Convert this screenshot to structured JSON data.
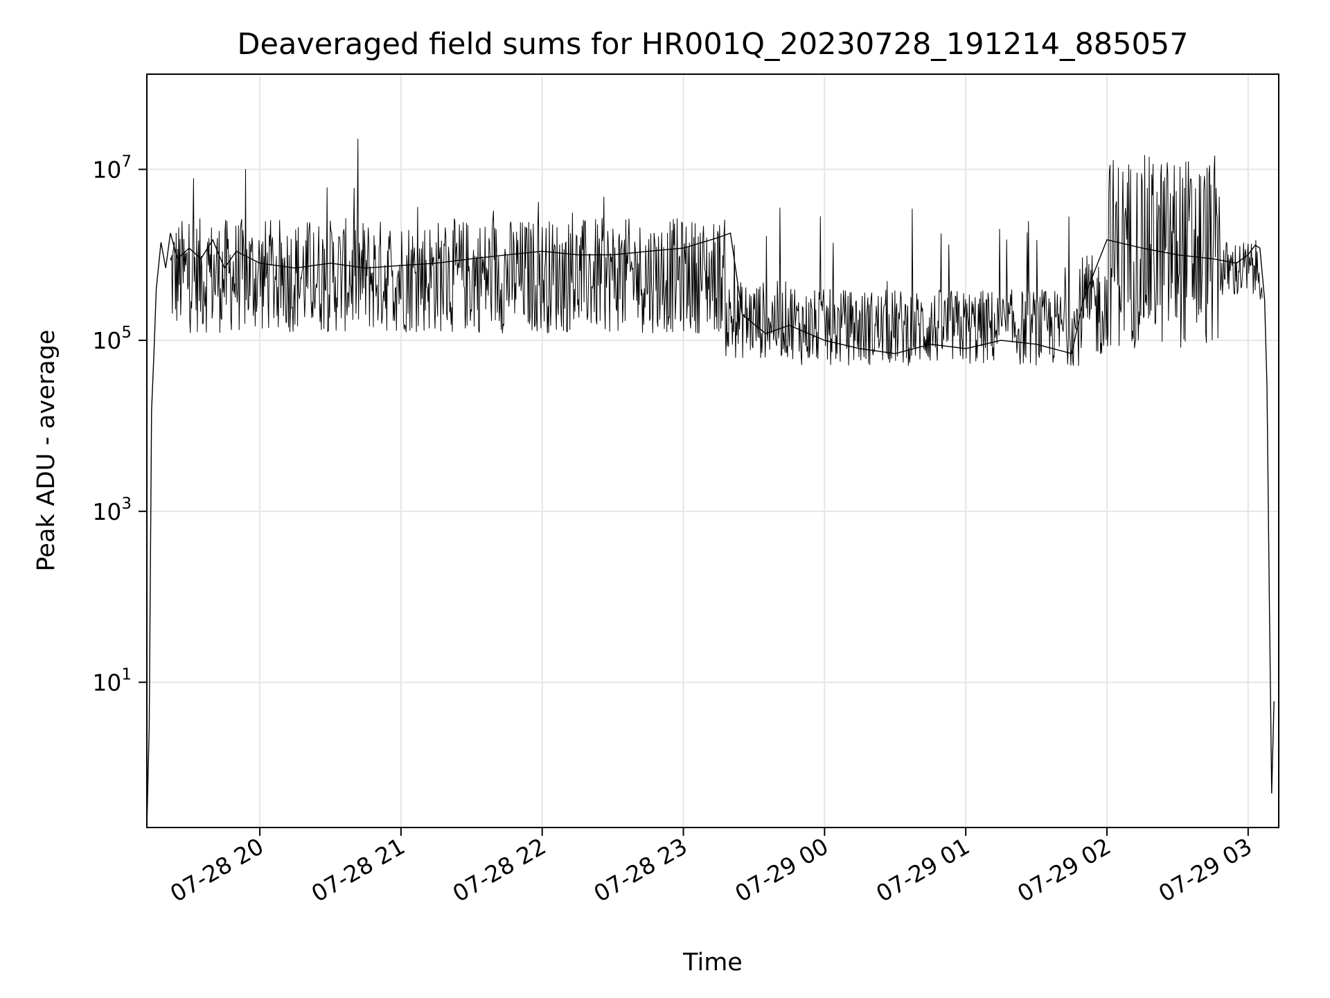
{
  "chart_data": {
    "type": "line",
    "title": "Deaveraged field sums for HR001Q_20230728_191214_885057",
    "xlabel": "Time",
    "ylabel": "Peak ADU - average",
    "yscale": "log",
    "ylim": [
      0.2,
      130000000.0
    ],
    "xlim": [
      "2023-07-28 19:12",
      "2023-07-29 03:13"
    ],
    "grid": true,
    "line_color": "#000000",
    "x_ticks": [
      {
        "value": "2023-07-28 20:00",
        "label": "07-28 20"
      },
      {
        "value": "2023-07-28 21:00",
        "label": "07-28 21"
      },
      {
        "value": "2023-07-28 22:00",
        "label": "07-28 22"
      },
      {
        "value": "2023-07-28 23:00",
        "label": "07-28 23"
      },
      {
        "value": "2023-07-29 00:00",
        "label": "07-29 00"
      },
      {
        "value": "2023-07-29 01:00",
        "label": "07-29 01"
      },
      {
        "value": "2023-07-29 02:00",
        "label": "07-29 02"
      },
      {
        "value": "2023-07-29 03:00",
        "label": "07-29 03"
      }
    ],
    "y_ticks": [
      {
        "value": 10,
        "base": "10",
        "exp": "1"
      },
      {
        "value": 1000,
        "base": "10",
        "exp": "3"
      },
      {
        "value": 100000,
        "base": "10",
        "exp": "5"
      },
      {
        "value": 10000000,
        "base": "10",
        "exp": "7"
      }
    ],
    "series": [
      {
        "x": [
          "2023-07-28 19:12",
          "2023-07-28 19:13",
          "2023-07-28 19:14",
          "2023-07-28 19:15",
          "2023-07-28 19:16",
          "2023-07-28 19:18",
          "2023-07-28 19:20",
          "2023-07-28 19:22",
          "2023-07-28 19:25",
          "2023-07-28 19:30",
          "2023-07-28 19:35",
          "2023-07-28 19:40",
          "2023-07-28 19:45",
          "2023-07-28 19:50",
          "2023-07-28 20:00",
          "2023-07-28 20:15",
          "2023-07-28 20:30",
          "2023-07-28 20:45",
          "2023-07-28 21:00",
          "2023-07-28 21:15",
          "2023-07-28 21:30",
          "2023-07-28 21:45",
          "2023-07-28 22:00",
          "2023-07-28 22:15",
          "2023-07-28 22:30",
          "2023-07-28 22:45",
          "2023-07-28 23:00",
          "2023-07-28 23:15",
          "2023-07-28 23:20",
          "2023-07-28 23:25",
          "2023-07-28 23:35",
          "2023-07-28 23:45",
          "2023-07-29 00:00",
          "2023-07-29 00:15",
          "2023-07-29 00:30",
          "2023-07-29 00:45",
          "2023-07-29 01:00",
          "2023-07-29 01:15",
          "2023-07-29 01:30",
          "2023-07-29 01:45",
          "2023-07-29 01:50",
          "2023-07-29 02:00",
          "2023-07-29 02:15",
          "2023-07-29 02:30",
          "2023-07-29 02:45",
          "2023-07-29 02:55",
          "2023-07-29 03:00",
          "2023-07-29 03:03",
          "2023-07-29 03:05",
          "2023-07-29 03:07",
          "2023-07-29 03:08",
          "2023-07-29 03:09",
          "2023-07-29 03:10",
          "2023-07-29 03:11"
        ],
        "y": [
          0.2,
          3,
          15000,
          70000,
          400000,
          1400000,
          700000,
          1800000,
          900000,
          1200000,
          900000,
          1500000,
          700000,
          1100000,
          800000,
          700000,
          800000,
          700000,
          750000,
          800000,
          900000,
          1000000,
          1100000,
          1000000,
          1000000,
          1100000,
          1200000,
          1600000,
          1800000,
          200000,
          120000,
          150000,
          100000,
          80000,
          70000,
          90000,
          80000,
          100000,
          90000,
          70000,
          300000,
          1500000,
          1200000,
          1000000,
          900000,
          800000,
          1000000,
          1300000,
          1200000,
          300000,
          30000,
          100,
          0.5,
          6
        ]
      }
    ]
  }
}
